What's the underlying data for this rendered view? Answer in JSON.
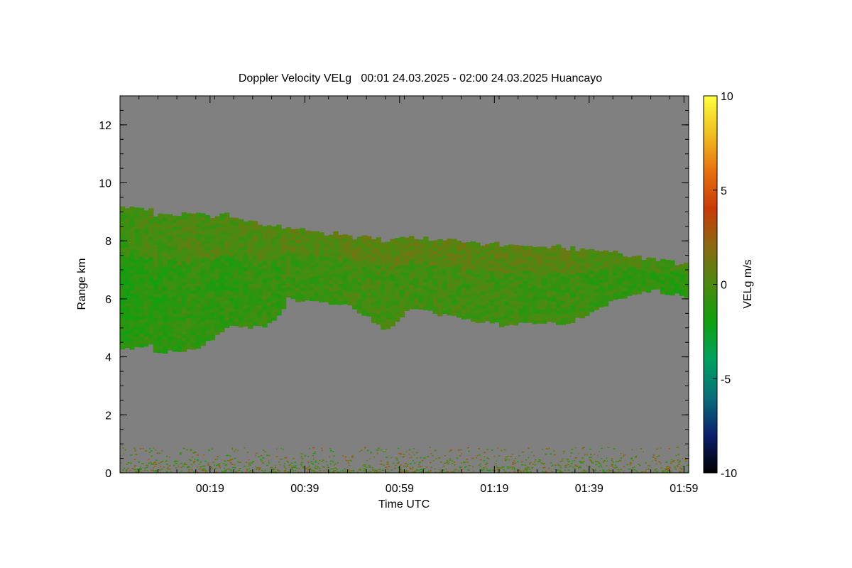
{
  "chart_data": {
    "type": "heatmap",
    "title": "Doppler Velocity VELg   00:01 24.03.2025 - 02:00 24.03.2025 Huancayo",
    "xlabel": "Time UTC",
    "ylabel": "Range km",
    "x_tick_labels": [
      "00:19",
      "00:39",
      "00:59",
      "01:19",
      "01:39",
      "01:59"
    ],
    "x_tick_minutes": [
      19,
      39,
      59,
      79,
      99,
      119
    ],
    "xlim_minutes": [
      0,
      120
    ],
    "ylim": [
      0,
      13
    ],
    "y_ticks": [
      0,
      2,
      4,
      6,
      8,
      10,
      12
    ],
    "y_tick_labels": [
      "0",
      "2",
      "4",
      "6",
      "8",
      "10",
      "12"
    ],
    "colorbar": {
      "label": "VELg m/s",
      "range": [
        -10,
        10
      ],
      "ticks": [
        10,
        5,
        0,
        -5,
        -10
      ],
      "tick_labels": [
        "10",
        "5",
        "0",
        "-5",
        "-10"
      ],
      "colors": [
        "#000000",
        "#0b1e6e",
        "#0a6e7a",
        "#00a060",
        "#10a010",
        "#4a8a10",
        "#8a6a10",
        "#c83a08",
        "#e87010",
        "#f0c020",
        "#ffff40"
      ]
    },
    "background_color": "#808080",
    "cloud_layer": {
      "time_minutes": [
        0,
        6,
        7,
        15,
        23,
        30,
        33,
        35,
        40,
        48,
        55,
        57,
        60,
        63,
        70,
        80,
        95,
        104,
        112,
        119
      ],
      "top_km": [
        9.1,
        9.0,
        8.8,
        8.9,
        8.8,
        8.5,
        8.4,
        8.4,
        8.3,
        8.1,
        8.0,
        8.0,
        8.0,
        8.0,
        7.9,
        7.8,
        7.7,
        7.5,
        7.3,
        7.2
      ],
      "base_km": [
        4.3,
        4.4,
        4.2,
        4.2,
        5.1,
        5.0,
        5.4,
        6.0,
        5.9,
        5.8,
        5.0,
        5.0,
        5.6,
        5.6,
        5.4,
        5.1,
        5.2,
        6.0,
        6.3,
        6.1
      ],
      "velocity_ms": [
        -1.5,
        -1.0,
        -1.2,
        -0.8,
        -1.0,
        -0.6,
        -0.8,
        -0.5,
        -0.7,
        -0.4,
        -0.3,
        -0.5,
        -0.2,
        -0.4,
        -0.3,
        -0.5,
        -0.6,
        -0.8,
        -1.0,
        -1.2
      ]
    },
    "boundary_layer": {
      "top_km": 0.9,
      "velocity_range_ms": [
        -2,
        3
      ]
    }
  }
}
